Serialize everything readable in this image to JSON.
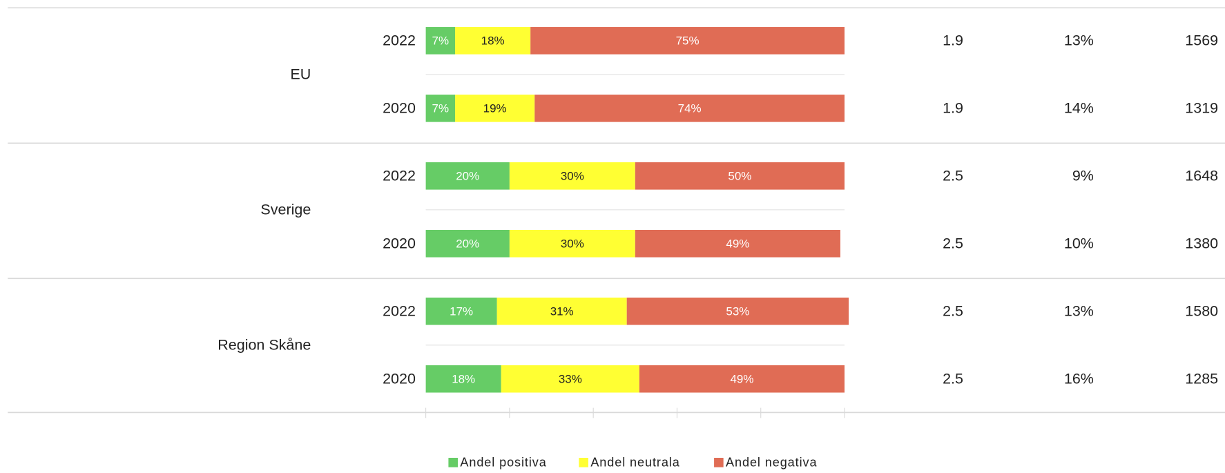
{
  "chart_data": {
    "type": "bar",
    "orientation": "horizontal",
    "stacked": true,
    "groups": [
      "EU",
      "Sverige",
      "Region Skåne"
    ],
    "categories": [
      "2022",
      "2020",
      "2022",
      "2020",
      "2022",
      "2020"
    ],
    "series": [
      {
        "name": "Andel positiva",
        "color": "#66cc66",
        "values": [
          7,
          7,
          20,
          20,
          17,
          18
        ],
        "value_labels": [
          "7%",
          "7%",
          "20%",
          "20%",
          "17%",
          "18%"
        ]
      },
      {
        "name": "Andel neutrala",
        "color": "#ffff33",
        "values": [
          18,
          19,
          30,
          30,
          31,
          33
        ],
        "value_labels": [
          "18%",
          "19%",
          "30%",
          "30%",
          "31%",
          "33%"
        ]
      },
      {
        "name": "Andel negativa",
        "color": "#e06c55",
        "values": [
          75,
          74,
          50,
          49,
          53,
          49
        ],
        "value_labels": [
          "75%",
          "74%",
          "50%",
          "49%",
          "53%",
          "49%"
        ]
      }
    ],
    "columns": [
      {
        "values": [
          1.9,
          1.9,
          2.5,
          2.5,
          2.5,
          2.5
        ]
      },
      {
        "values": [
          13,
          14,
          9,
          10,
          13,
          16
        ],
        "value_labels": [
          "13%",
          "14%",
          "9%",
          "10%",
          "13%",
          "16%"
        ]
      },
      {
        "values": [
          1569,
          1319,
          1648,
          1380,
          1580,
          1285
        ]
      }
    ],
    "xlim": [
      0,
      100
    ],
    "xticks": [
      0,
      20,
      40,
      60,
      80,
      100
    ]
  }
}
